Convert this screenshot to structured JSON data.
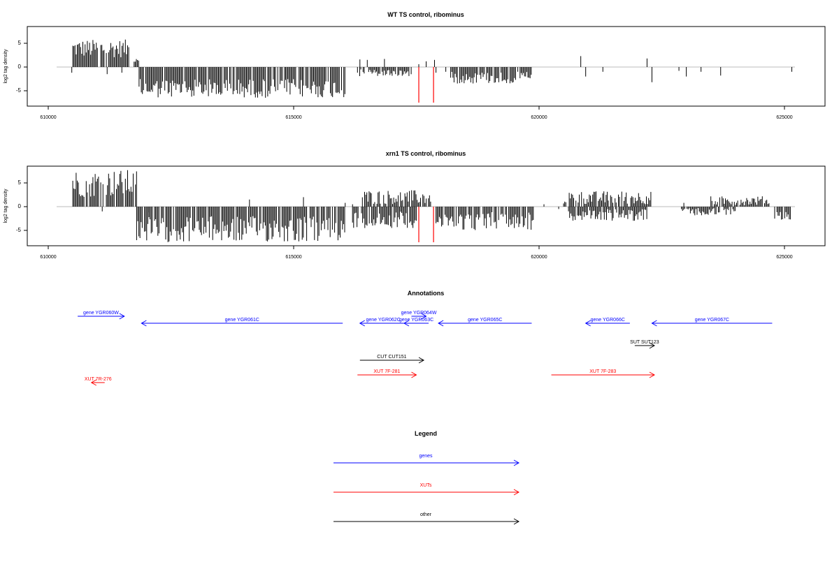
{
  "chart_data": [
    {
      "type": "bar",
      "title": "WT TS control, ribominus",
      "xlabel": "",
      "ylabel": "log2 tag density",
      "xlim": [
        610000,
        625500
      ],
      "ylim": [
        -8,
        8
      ],
      "x_ticks": [
        610000,
        615000,
        620000,
        625000
      ],
      "x_tick_labels": [
        "610000",
        "615000",
        "620000",
        "625000"
      ],
      "y_ticks": [
        5,
        0,
        -5
      ],
      "y_tick_labels": [
        "5",
        "0",
        "-5"
      ],
      "colors": {
        "signal": "#000000",
        "highlight": "#ff0000",
        "baseline": "#bbbbbb"
      },
      "segments": [
        {
          "x": [
            610500,
            611650
          ],
          "min": 2.0,
          "max": 5.8,
          "sign": 1
        },
        {
          "x": [
            611750,
            611850
          ],
          "min": 1.0,
          "max": 2.5,
          "sign": 1
        },
        {
          "x": [
            611850,
            616050
          ],
          "min": 2.5,
          "max": 6.5,
          "sign": -1
        },
        {
          "x": [
            616300,
            617400
          ],
          "min": 0.5,
          "max": 2.0,
          "sign": -1
        },
        {
          "x": [
            618200,
            619850
          ],
          "min": 1.0,
          "max": 3.5,
          "sign": -1
        }
      ],
      "points": [
        {
          "x": 610480,
          "y": -1.2
        },
        {
          "x": 611200,
          "y": -1.5
        },
        {
          "x": 611500,
          "y": -1.2
        },
        {
          "x": 616350,
          "y": 1.6
        },
        {
          "x": 616500,
          "y": 1.5
        },
        {
          "x": 616850,
          "y": 1.7
        },
        {
          "x": 617550,
          "y": 0.6
        },
        {
          "x": 617700,
          "y": 1.2
        },
        {
          "x": 617870,
          "y": 1.5
        },
        {
          "x": 617900,
          "y": -1.2
        },
        {
          "x": 618100,
          "y": -1.0
        },
        {
          "x": 620850,
          "y": 2.3
        },
        {
          "x": 620950,
          "y": -2.0
        },
        {
          "x": 621300,
          "y": -1.0
        },
        {
          "x": 622200,
          "y": 1.8
        },
        {
          "x": 622300,
          "y": -3.2
        },
        {
          "x": 622850,
          "y": -0.8
        },
        {
          "x": 623000,
          "y": -2.0
        },
        {
          "x": 623300,
          "y": -1.0
        },
        {
          "x": 623700,
          "y": -1.8
        },
        {
          "x": 625150,
          "y": -1.0
        }
      ],
      "highlights": [
        {
          "x": 617550,
          "y": -7.5
        },
        {
          "x": 617850,
          "y": -7.5
        }
      ]
    },
    {
      "type": "bar",
      "title": "xrn1 TS control, ribominus",
      "xlabel": "",
      "ylabel": "log2 tag density",
      "xlim": [
        610000,
        625500
      ],
      "ylim": [
        -8,
        8
      ],
      "x_ticks": [
        610000,
        615000,
        620000,
        625000
      ],
      "x_tick_labels": [
        "610000",
        "615000",
        "620000",
        "625000"
      ],
      "y_ticks": [
        5,
        0,
        -5
      ],
      "y_tick_labels": [
        "5",
        "0",
        "-5"
      ],
      "colors": {
        "signal": "#000000",
        "highlight": "#ff0000",
        "baseline": "#bbbbbb"
      },
      "segments": [
        {
          "x": [
            610500,
            611800
          ],
          "min": 2.0,
          "max": 7.8,
          "sign": 1
        },
        {
          "x": [
            611800,
            616050
          ],
          "min": 2.0,
          "max": 7.5,
          "sign": -1
        },
        {
          "x": [
            616400,
            617800
          ],
          "min": 0.5,
          "max": 3.5,
          "sign": 1
        },
        {
          "x": [
            616200,
            617500
          ],
          "min": 1.0,
          "max": 4.5,
          "sign": -1
        },
        {
          "x": [
            617900,
            619900
          ],
          "min": 1.0,
          "max": 5.0,
          "sign": -1
        },
        {
          "x": [
            620500,
            622300
          ],
          "min": 0.5,
          "max": 3.3,
          "sign": 1
        },
        {
          "x": [
            620600,
            622200
          ],
          "min": 0.5,
          "max": 3.0,
          "sign": -1
        },
        {
          "x": [
            622900,
            624000
          ],
          "min": 0.3,
          "max": 2.0,
          "sign": -1
        },
        {
          "x": [
            623500,
            624700
          ],
          "min": 0.3,
          "max": 2.2,
          "sign": 1
        },
        {
          "x": [
            624800,
            625150
          ],
          "min": 1.0,
          "max": 3.0,
          "sign": -1
        }
      ],
      "points": [
        {
          "x": 611100,
          "y": -1.0
        },
        {
          "x": 612050,
          "y": -1.2
        },
        {
          "x": 614100,
          "y": 1.5
        },
        {
          "x": 615200,
          "y": 2.0
        },
        {
          "x": 616050,
          "y": 0.8
        },
        {
          "x": 616200,
          "y": 0.5
        },
        {
          "x": 620100,
          "y": 0.5
        },
        {
          "x": 620400,
          "y": -0.5
        },
        {
          "x": 622950,
          "y": 0.8
        }
      ],
      "highlights": [
        {
          "x": 617550,
          "y": -7.5
        },
        {
          "x": 617850,
          "y": -7.5
        }
      ]
    }
  ],
  "annotations": {
    "title": "Annotations",
    "xlim": [
      610000,
      625500
    ],
    "rows": [
      {
        "label": "gene YGR060W",
        "start": 610600,
        "end": 611550,
        "color": "#0000ff",
        "row": 0
      },
      {
        "label": "gene YGR061C",
        "start": 616000,
        "end": 611900,
        "color": "#0000ff",
        "row": 1
      },
      {
        "label": "gene YGR062C",
        "start": 617300,
        "end": 616350,
        "color": "#0000ff",
        "row": 1
      },
      {
        "label": "gene YGR063C",
        "start": 617750,
        "end": 617250,
        "color": "#0000ff",
        "row": 1
      },
      {
        "label": "gene YGR064W",
        "start": 617400,
        "end": 617700,
        "color": "#0000ff",
        "row": 0
      },
      {
        "label": "gene YGR065C",
        "start": 619850,
        "end": 617950,
        "color": "#0000ff",
        "row": 1
      },
      {
        "label": "gene YGR066C",
        "start": 621850,
        "end": 620950,
        "color": "#0000ff",
        "row": 1
      },
      {
        "label": "gene YGR067C",
        "start": 624750,
        "end": 622300,
        "color": "#0000ff",
        "row": 1
      },
      {
        "label": "SUT SUT123",
        "start": 621950,
        "end": 622350,
        "color": "#000000",
        "row": 2
      },
      {
        "label": "CUT CUT151",
        "start": 616350,
        "end": 617650,
        "color": "#000000",
        "row": 3
      },
      {
        "label": "XUT 7F-281",
        "start": 616300,
        "end": 617500,
        "color": "#ff0000",
        "row": 4
      },
      {
        "label": "XUT 7F-283",
        "start": 620250,
        "end": 622350,
        "color": "#ff0000",
        "row": 4
      },
      {
        "label": "XUT 7R-276",
        "start": 611150,
        "end": 610880,
        "color": "#ff0000",
        "row": 5
      }
    ]
  },
  "legend": {
    "title": "Legend",
    "items": [
      {
        "label": "genes",
        "color": "#0000ff"
      },
      {
        "label": "XUTs",
        "color": "#ff0000"
      },
      {
        "label": "other",
        "color": "#000000"
      }
    ]
  }
}
